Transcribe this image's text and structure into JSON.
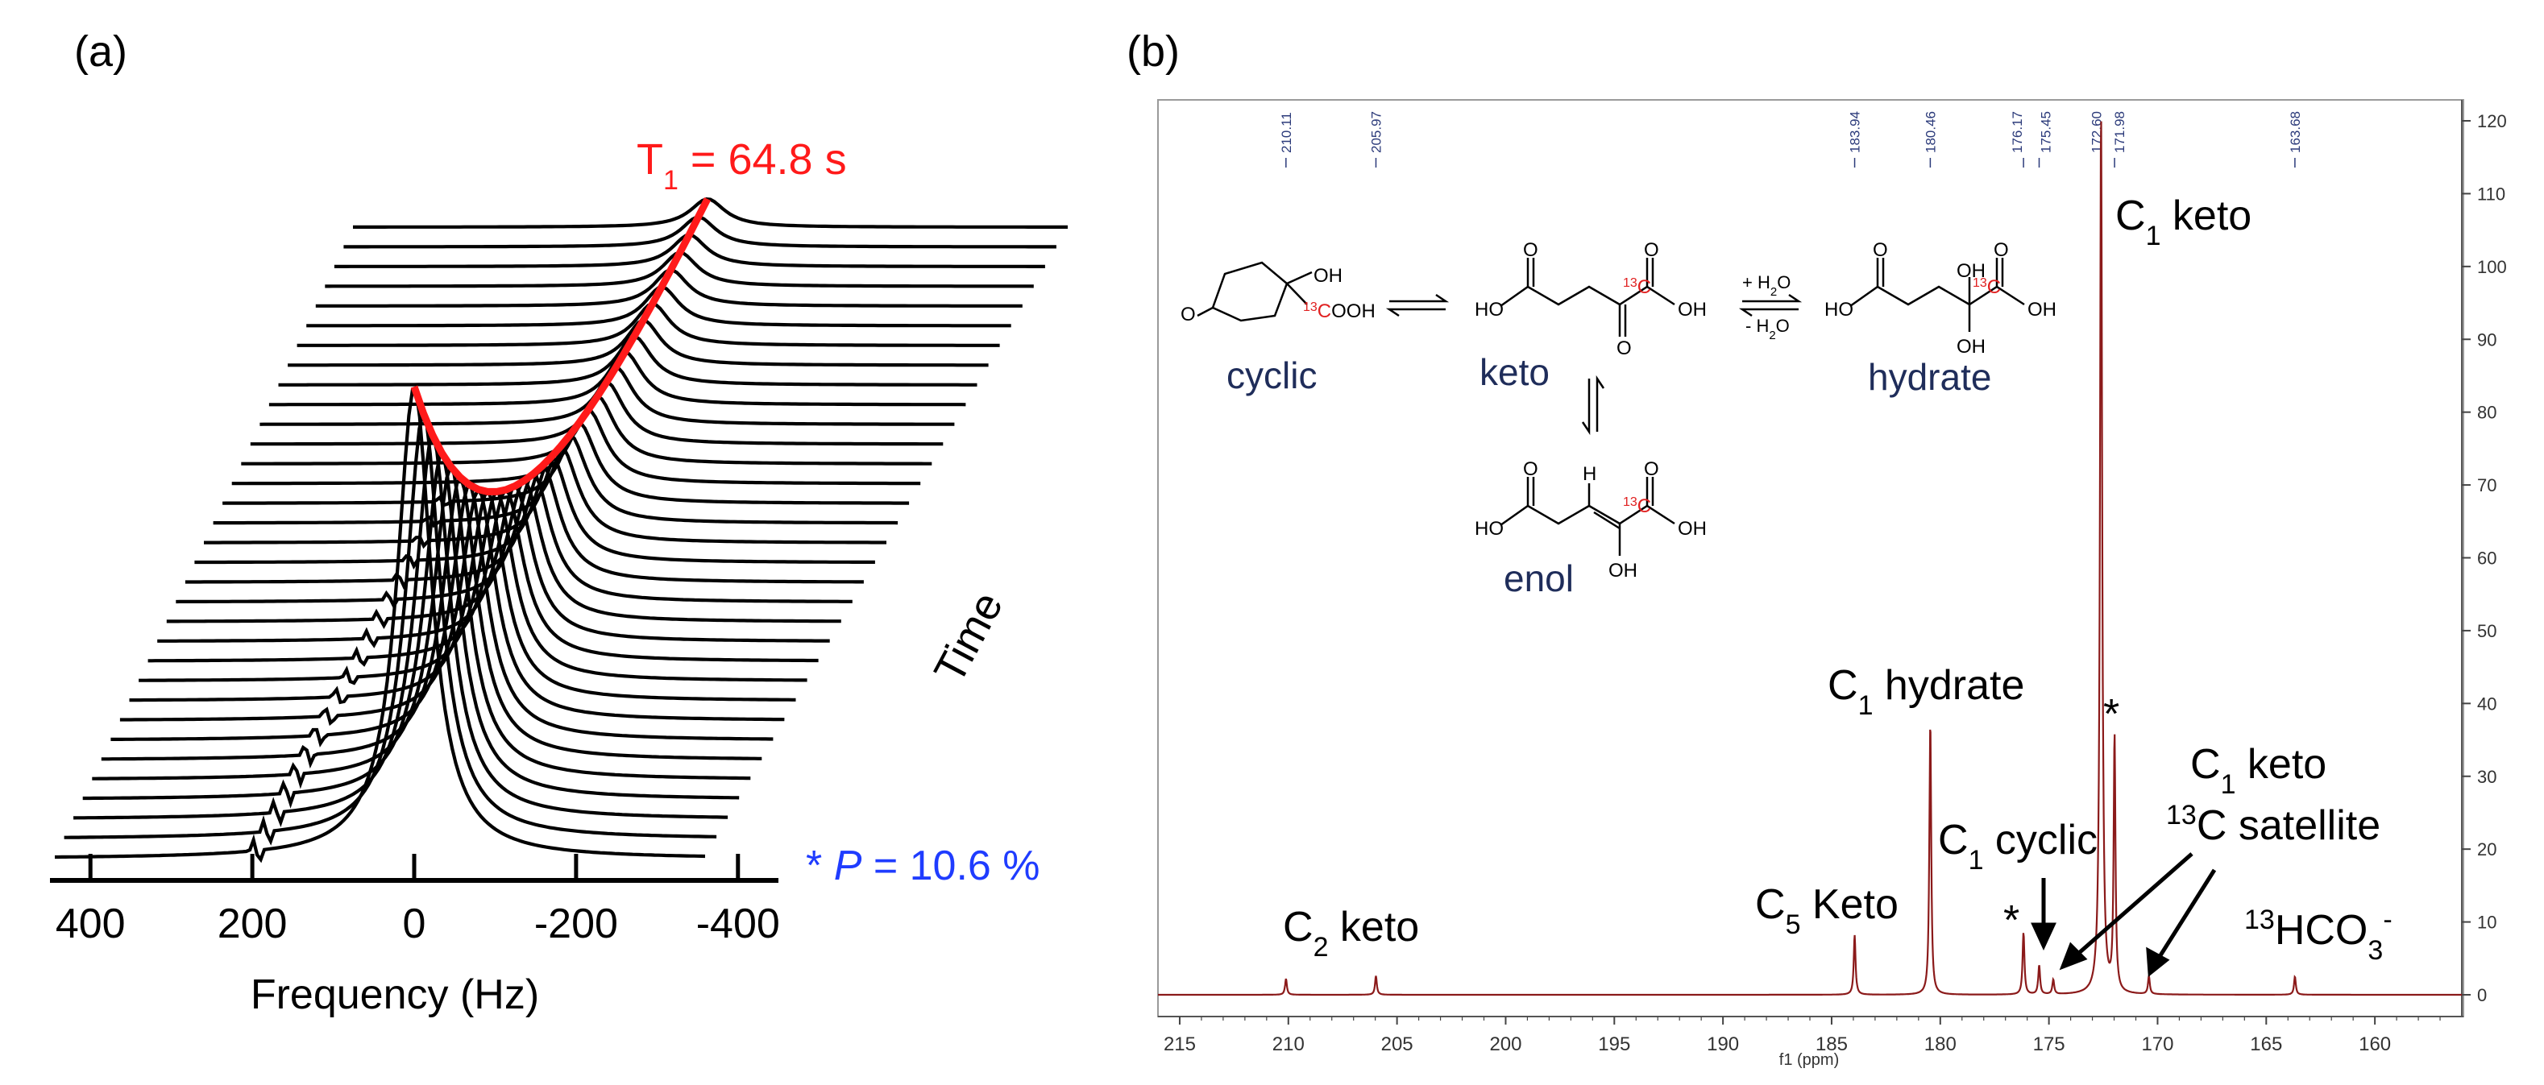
{
  "panel_a": {
    "label": "(a)",
    "t1_prefix": "T",
    "t1_sub": "1",
    "t1_rest": " = 64.8 s",
    "time_label": "Time",
    "pol_star": "* ",
    "pol_var": "P",
    "pol_rest": " = 10.6 %",
    "xlabel": "Frequency (Hz)",
    "colors": {
      "spectra": "#000000",
      "decay": "#ff1a1a",
      "polarization": "#1f3cff"
    }
  },
  "panel_b": {
    "label": "(b)",
    "annotations": {
      "c1_keto": {
        "pre": "C",
        "sub": "1",
        "post": " keto"
      },
      "c1_hydrate": {
        "pre": "C",
        "sub": "1",
        "post": " hydrate"
      },
      "c1_cyclic": {
        "pre": "C",
        "sub": "1",
        "post": " cyclic"
      },
      "c5_keto": {
        "pre": "C",
        "sub": "5",
        "post": " Keto"
      },
      "c2_keto": {
        "pre": "C",
        "sub": "2",
        "post": " keto"
      },
      "satellite_l1": {
        "pre": "C",
        "sub": "1",
        "post": " keto"
      },
      "satellite_l2": {
        "sup": "13",
        "post": "C satellite"
      },
      "bicarbonate": {
        "sup": "13",
        "mid": "HCO",
        "sub": "3",
        "sup2": "-"
      },
      "star": "*"
    },
    "peak_labels": [
      "210.11",
      "205.97",
      "183.94",
      "180.46",
      "176.17",
      "175.45",
      "172.60",
      "171.98",
      "163.68"
    ],
    "xlabel": "f1 (ppm)",
    "colors": {
      "spectrum": "#8b1a1a",
      "peak_labels": "#2b3a7a",
      "axis": "#444444"
    },
    "scheme": {
      "names": {
        "cyclic": "cyclic",
        "keto": "keto",
        "hydrate": "hydrate",
        "enol": "enol"
      },
      "atoms": {
        "OH": "OH",
        "O": "O",
        "HO": "HO",
        "H": "H",
        "OOH": "OOH",
        "C": "C",
        "iso": "13"
      },
      "water": {
        "plus_pre": "+ H",
        "minus_pre": "- H",
        "sub": "2",
        "post": "O"
      }
    }
  },
  "chart_data": [
    {
      "type": "line",
      "title": "",
      "xlabel": "Frequency (Hz)",
      "x_ticks": [
        "400",
        "200",
        "0",
        "-200",
        "-400"
      ],
      "xlim": [
        450,
        -450
      ],
      "x_reversed": true,
      "series_count": 33,
      "peak_frequency_hz": 0,
      "annotations": [
        "T1 = 64.8 s",
        "* P = 10.6 %",
        "Time"
      ]
    },
    {
      "type": "line",
      "title": "",
      "xlabel": "f1 (ppm)",
      "x_ticks": [
        "215",
        "210",
        "205",
        "200",
        "195",
        "190",
        "185",
        "180",
        "175",
        "170",
        "165",
        "160"
      ],
      "xlim": [
        216,
        156
      ],
      "x_reversed": true,
      "y_ticks": [
        "0",
        "10",
        "20",
        "30",
        "40",
        "50",
        "60",
        "70",
        "80",
        "90",
        "100",
        "110",
        "120"
      ],
      "ylim": [
        -1,
        123
      ],
      "peaks": [
        {
          "ppm": 210.11,
          "height": 2.2,
          "label": "C2 keto"
        },
        {
          "ppm": 205.97,
          "height": 2.6,
          "label": "C2 keto"
        },
        {
          "ppm": 183.94,
          "height": 8.2,
          "label": "C5 Keto"
        },
        {
          "ppm": 180.46,
          "height": 37.5,
          "label": "C1 hydrate"
        },
        {
          "ppm": 176.17,
          "height": 8.5,
          "label": "*"
        },
        {
          "ppm": 175.45,
          "height": 4.0,
          "label": "C1 cyclic"
        },
        {
          "ppm": 172.6,
          "height": 121,
          "label": "C1 keto"
        },
        {
          "ppm": 171.98,
          "height": 35,
          "label": "*"
        },
        {
          "ppm": 170.4,
          "height": 2.5,
          "label": "13C satellite"
        },
        {
          "ppm": 174.8,
          "height": 2.0,
          "label": "13C satellite"
        },
        {
          "ppm": 163.68,
          "height": 2.5,
          "label": "13HCO3-"
        }
      ]
    }
  ]
}
